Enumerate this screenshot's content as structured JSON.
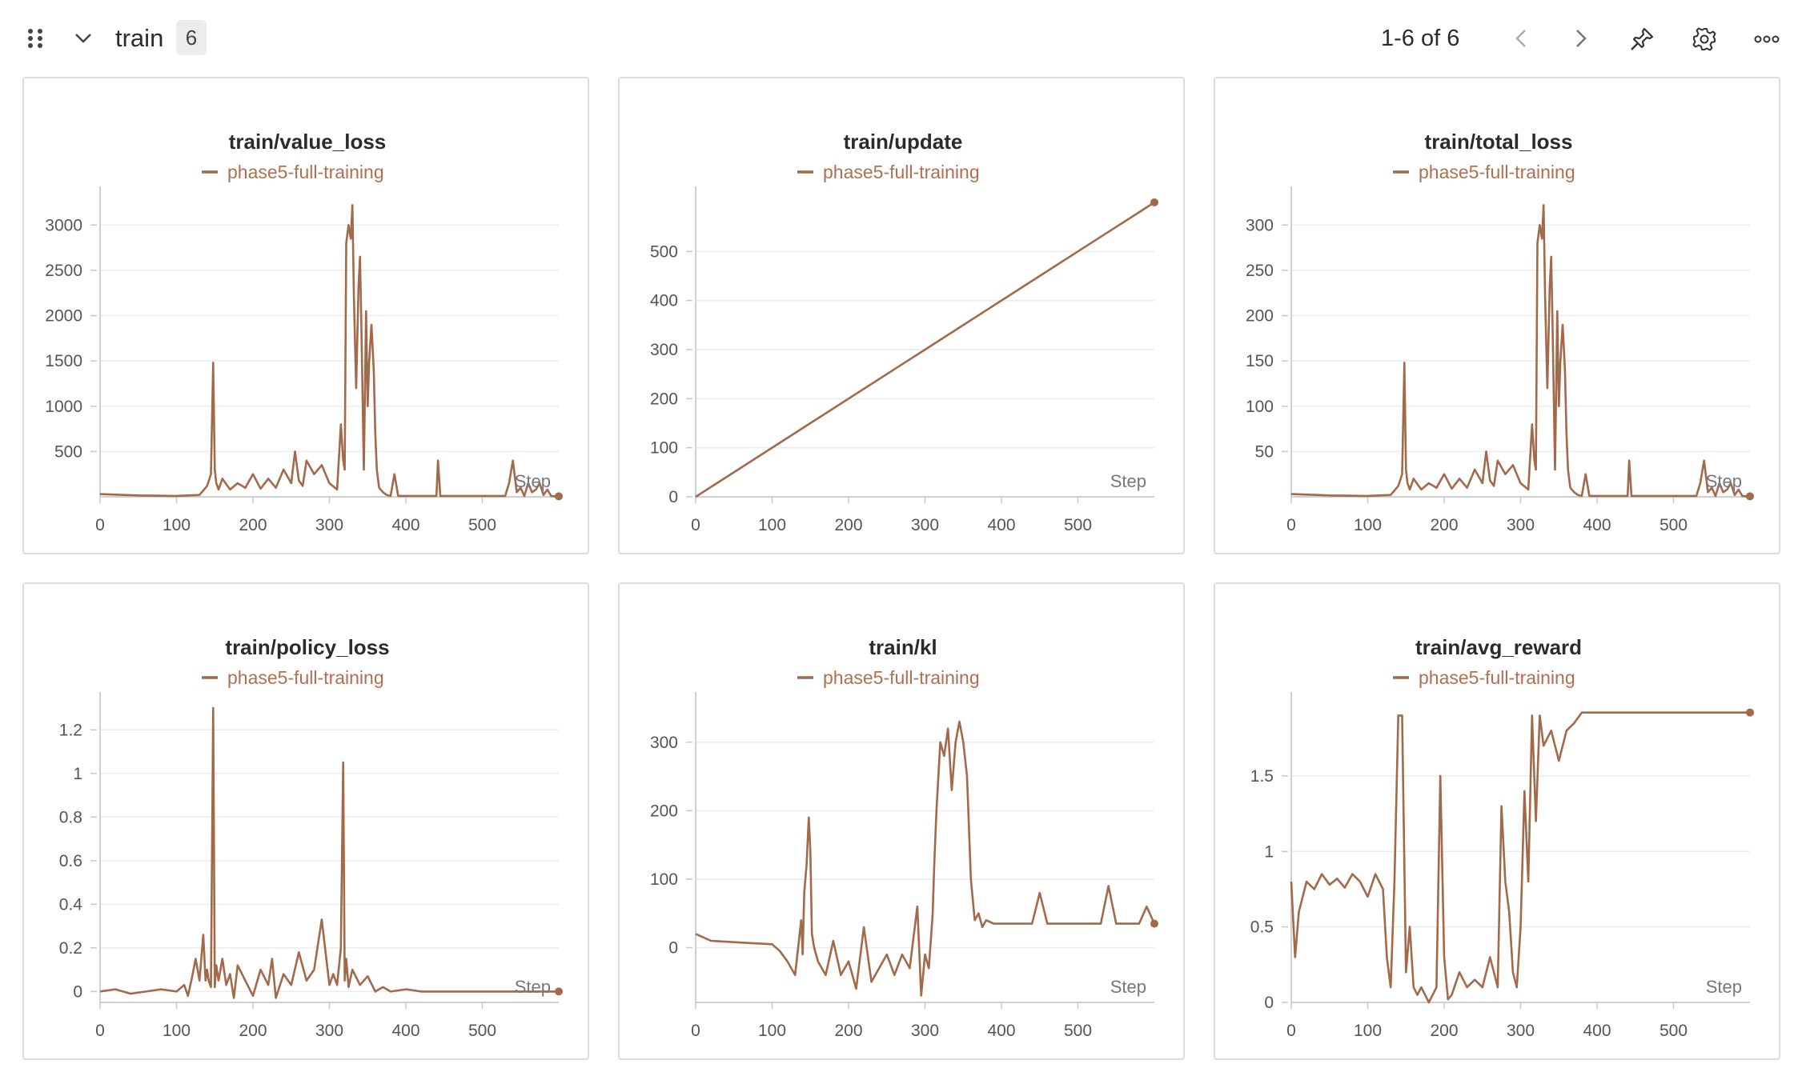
{
  "header": {
    "section_title": "train",
    "count_badge": "6",
    "pagination": "1-6 of 6",
    "icons": [
      "drag-handle-icon",
      "chevron-down-icon",
      "chevron-left-icon",
      "chevron-right-icon",
      "pin-icon",
      "gear-icon",
      "more-icon"
    ]
  },
  "colors": {
    "series": "#a2694a",
    "legend_text": "#b07050",
    "grid": "#ececec",
    "border": "#dcdcdc"
  },
  "chart_data": [
    {
      "type": "line",
      "title": "train/value_loss",
      "xlabel": "Step",
      "legend": [
        "phase5-full-training"
      ],
      "xlim": [
        0,
        600
      ],
      "ylim": [
        0,
        3250
      ],
      "xticks": [
        0,
        100,
        200,
        300,
        400,
        500
      ],
      "yticks": [
        500,
        1000,
        1500,
        2000,
        2500,
        3000
      ],
      "series": [
        {
          "name": "phase5-full-training",
          "x": [
            0,
            50,
            100,
            130,
            140,
            145,
            148,
            150,
            152,
            155,
            160,
            170,
            180,
            190,
            200,
            210,
            220,
            230,
            240,
            250,
            255,
            260,
            265,
            270,
            280,
            290,
            300,
            310,
            315,
            318,
            320,
            322,
            325,
            328,
            330,
            332,
            335,
            338,
            340,
            342,
            345,
            348,
            350,
            352,
            355,
            358,
            360,
            362,
            365,
            370,
            375,
            380,
            385,
            390,
            395,
            400,
            410,
            420,
            430,
            440,
            442,
            445,
            450,
            460,
            470,
            480,
            490,
            500,
            510,
            520,
            530,
            535,
            540,
            545,
            550,
            555,
            560,
            565,
            570,
            575,
            580,
            585,
            590,
            595,
            600
          ],
          "y": [
            30,
            15,
            10,
            20,
            120,
            250,
            1480,
            300,
            150,
            80,
            200,
            80,
            150,
            100,
            250,
            90,
            200,
            100,
            300,
            150,
            500,
            180,
            120,
            400,
            250,
            350,
            150,
            80,
            800,
            400,
            300,
            2800,
            3000,
            2850,
            3220,
            2200,
            1200,
            2300,
            2650,
            1800,
            300,
            2050,
            1000,
            1500,
            1900,
            1400,
            700,
            300,
            100,
            50,
            20,
            10,
            250,
            10,
            10,
            10,
            10,
            10,
            10,
            10,
            400,
            10,
            10,
            10,
            10,
            10,
            10,
            10,
            10,
            10,
            10,
            150,
            400,
            50,
            100,
            10,
            150,
            50,
            80,
            150,
            20,
            80,
            10,
            5,
            5
          ]
        }
      ]
    },
    {
      "type": "line",
      "title": "train/update",
      "xlabel": "Step",
      "legend": [
        "phase5-full-training"
      ],
      "xlim": [
        0,
        600
      ],
      "ylim": [
        0,
        600
      ],
      "xticks": [
        0,
        100,
        200,
        300,
        400,
        500
      ],
      "yticks": [
        0,
        100,
        200,
        300,
        400,
        500
      ],
      "series": [
        {
          "name": "phase5-full-training",
          "x": [
            0,
            600
          ],
          "y": [
            0,
            600
          ]
        }
      ]
    },
    {
      "type": "line",
      "title": "train/total_loss",
      "xlabel": "Step",
      "legend": [
        "phase5-full-training"
      ],
      "xlim": [
        0,
        600
      ],
      "ylim": [
        0,
        325
      ],
      "xticks": [
        0,
        100,
        200,
        300,
        400,
        500
      ],
      "yticks": [
        50,
        100,
        150,
        200,
        250,
        300
      ],
      "series": [
        {
          "name": "phase5-full-training",
          "x": [
            0,
            50,
            100,
            130,
            140,
            145,
            148,
            150,
            152,
            155,
            160,
            170,
            180,
            190,
            200,
            210,
            220,
            230,
            240,
            250,
            255,
            260,
            265,
            270,
            280,
            290,
            300,
            310,
            315,
            318,
            320,
            322,
            325,
            328,
            330,
            332,
            335,
            338,
            340,
            342,
            345,
            348,
            350,
            352,
            355,
            358,
            360,
            362,
            365,
            370,
            375,
            380,
            385,
            390,
            395,
            400,
            410,
            420,
            430,
            440,
            442,
            445,
            450,
            460,
            470,
            480,
            490,
            500,
            510,
            520,
            530,
            535,
            540,
            545,
            550,
            555,
            560,
            565,
            570,
            575,
            580,
            585,
            590,
            595,
            600
          ],
          "y": [
            3,
            1.5,
            1,
            2,
            12,
            25,
            148,
            30,
            15,
            8,
            20,
            8,
            15,
            10,
            25,
            9,
            20,
            10,
            30,
            15,
            50,
            18,
            12,
            40,
            25,
            35,
            15,
            8,
            80,
            40,
            30,
            280,
            300,
            285,
            322,
            220,
            120,
            230,
            265,
            180,
            30,
            205,
            100,
            150,
            190,
            140,
            70,
            30,
            10,
            5,
            2,
            1,
            25,
            1,
            1,
            1,
            1,
            1,
            1,
            1,
            40,
            1,
            1,
            1,
            1,
            1,
            1,
            1,
            1,
            1,
            1,
            15,
            40,
            5,
            10,
            1,
            15,
            5,
            8,
            15,
            2,
            8,
            1,
            0.5,
            0.5
          ]
        }
      ]
    },
    {
      "type": "line",
      "title": "train/policy_loss",
      "xlabel": "Step",
      "legend": [
        "phase5-full-training"
      ],
      "xlim": [
        0,
        600
      ],
      "ylim": [
        -0.05,
        1.3
      ],
      "xticks": [
        0,
        100,
        200,
        300,
        400,
        500
      ],
      "yticks": [
        0,
        0.2,
        0.4,
        0.6,
        0.8,
        1,
        1.2
      ],
      "series": [
        {
          "name": "phase5-full-training",
          "x": [
            0,
            20,
            40,
            60,
            80,
            100,
            110,
            115,
            120,
            125,
            130,
            135,
            138,
            140,
            142,
            145,
            148,
            150,
            152,
            155,
            160,
            165,
            170,
            175,
            180,
            190,
            200,
            210,
            220,
            225,
            230,
            240,
            250,
            260,
            270,
            280,
            290,
            300,
            305,
            310,
            315,
            318,
            320,
            322,
            325,
            330,
            340,
            350,
            360,
            370,
            380,
            400,
            420,
            450,
            480,
            500,
            520,
            540,
            560,
            580,
            600
          ],
          "y": [
            0,
            0.01,
            -0.01,
            0,
            0.01,
            0,
            0.03,
            -0.02,
            0.06,
            0.15,
            0.05,
            0.26,
            0.05,
            0.1,
            0.05,
            0.02,
            1.3,
            0.02,
            0.12,
            0.05,
            0.15,
            0.03,
            0.08,
            -0.03,
            0.12,
            0.05,
            -0.02,
            0.1,
            0.03,
            0.15,
            -0.03,
            0.08,
            0.03,
            0.18,
            0.05,
            0.1,
            0.33,
            0.03,
            0.08,
            0.03,
            0.2,
            1.05,
            0.05,
            0.15,
            0.02,
            0.1,
            0.03,
            0.07,
            0,
            0.02,
            0,
            0.01,
            0,
            0,
            0,
            0,
            0,
            0,
            0,
            0,
            0
          ]
        }
      ]
    },
    {
      "type": "line",
      "title": "train/kl",
      "xlabel": "Step",
      "legend": [
        "phase5-full-training"
      ],
      "xlim": [
        0,
        600
      ],
      "ylim": [
        -80,
        350
      ],
      "xticks": [
        0,
        100,
        200,
        300,
        400,
        500
      ],
      "yticks": [
        0,
        100,
        200,
        300
      ],
      "series": [
        {
          "name": "phase5-full-training",
          "x": [
            0,
            20,
            50,
            100,
            110,
            120,
            130,
            138,
            140,
            142,
            145,
            148,
            150,
            152,
            155,
            160,
            170,
            180,
            190,
            200,
            210,
            220,
            230,
            240,
            250,
            260,
            270,
            280,
            290,
            295,
            300,
            305,
            310,
            312,
            315,
            320,
            325,
            330,
            335,
            340,
            345,
            350,
            355,
            360,
            365,
            370,
            375,
            380,
            390,
            400,
            410,
            420,
            440,
            450,
            460,
            480,
            500,
            520,
            530,
            540,
            550,
            560,
            570,
            580,
            590,
            600
          ],
          "y": [
            20,
            10,
            8,
            5,
            -5,
            -20,
            -40,
            40,
            -10,
            80,
            120,
            190,
            140,
            20,
            0,
            -20,
            -40,
            10,
            -40,
            -20,
            -60,
            30,
            -50,
            -30,
            -10,
            -40,
            -10,
            -30,
            60,
            -70,
            -10,
            -30,
            50,
            120,
            200,
            300,
            280,
            320,
            230,
            300,
            330,
            300,
            250,
            100,
            40,
            50,
            30,
            40,
            35,
            35,
            35,
            35,
            35,
            80,
            35,
            35,
            35,
            35,
            35,
            90,
            35,
            35,
            35,
            35,
            60,
            35
          ]
        }
      ]
    },
    {
      "type": "line",
      "title": "train/avg_reward",
      "xlabel": "Step",
      "legend": [
        "phase5-full-training"
      ],
      "xlim": [
        0,
        600
      ],
      "ylim": [
        0,
        1.95
      ],
      "xticks": [
        0,
        100,
        200,
        300,
        400,
        500
      ],
      "yticks": [
        0,
        0.5,
        1,
        1.5
      ],
      "series": [
        {
          "name": "phase5-full-training",
          "x": [
            0,
            5,
            10,
            15,
            20,
            30,
            40,
            50,
            60,
            70,
            80,
            90,
            100,
            110,
            120,
            125,
            130,
            135,
            140,
            145,
            150,
            155,
            160,
            165,
            170,
            180,
            190,
            195,
            200,
            205,
            210,
            220,
            230,
            240,
            250,
            260,
            270,
            275,
            280,
            285,
            290,
            295,
            300,
            305,
            310,
            315,
            320,
            325,
            330,
            340,
            350,
            360,
            370,
            380,
            400,
            450,
            500,
            550,
            580,
            600
          ],
          "y": [
            0.8,
            0.3,
            0.6,
            0.7,
            0.8,
            0.75,
            0.85,
            0.78,
            0.82,
            0.76,
            0.85,
            0.8,
            0.7,
            0.85,
            0.75,
            0.3,
            0.1,
            0.8,
            1.9,
            1.9,
            0.2,
            0.5,
            0.1,
            0.05,
            0.1,
            0,
            0.1,
            1.5,
            0.3,
            0.02,
            0.05,
            0.2,
            0.1,
            0.15,
            0.1,
            0.3,
            0.1,
            1.3,
            0.8,
            0.6,
            0.2,
            0.1,
            0.5,
            1.4,
            0.8,
            1.9,
            1.2,
            1.9,
            1.7,
            1.8,
            1.6,
            1.8,
            1.85,
            1.92,
            1.92,
            1.92,
            1.92,
            1.92,
            1.92,
            1.92
          ]
        }
      ]
    }
  ]
}
